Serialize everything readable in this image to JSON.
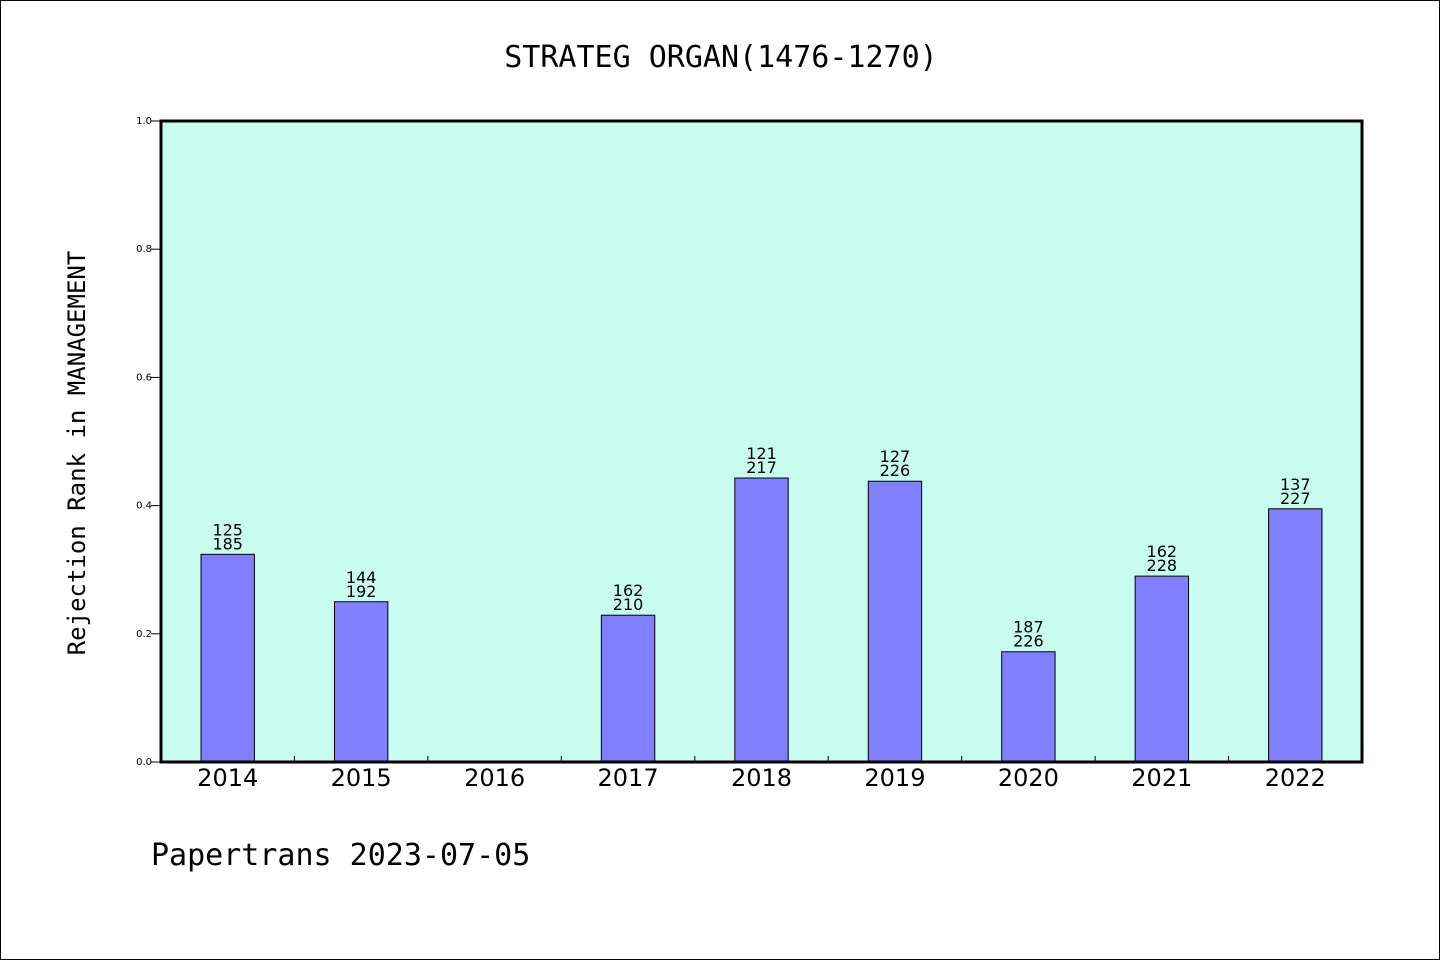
{
  "chart_data": {
    "type": "bar",
    "title": "STRATEG ORGAN(1476-1270)",
    "ylabel": "Rejection Rank in MANAGEMENT",
    "xlabel": "",
    "ylim": [
      0,
      1.0
    ],
    "yticks": [
      "0.0",
      "0.2",
      "0.4",
      "0.6",
      "0.8",
      "1.0"
    ],
    "categories": [
      "2014",
      "2015",
      "2016",
      "2017",
      "2018",
      "2019",
      "2020",
      "2021",
      "2022"
    ],
    "values": [
      0.324,
      0.25,
      null,
      0.229,
      0.443,
      0.438,
      0.172,
      0.29,
      0.395
    ],
    "labels_top": [
      "125",
      "144",
      "",
      "162",
      "121",
      "127",
      "187",
      "162",
      "137"
    ],
    "labels_bottom": [
      "185",
      "192",
      "",
      "210",
      "217",
      "226",
      "226",
      "228",
      "227"
    ],
    "grid": false,
    "colors": {
      "plot_bg": "#c8fcee",
      "bar": "#8080ff",
      "bar_edge": "#000000"
    }
  },
  "footer": "Papertrans 2023-07-05"
}
